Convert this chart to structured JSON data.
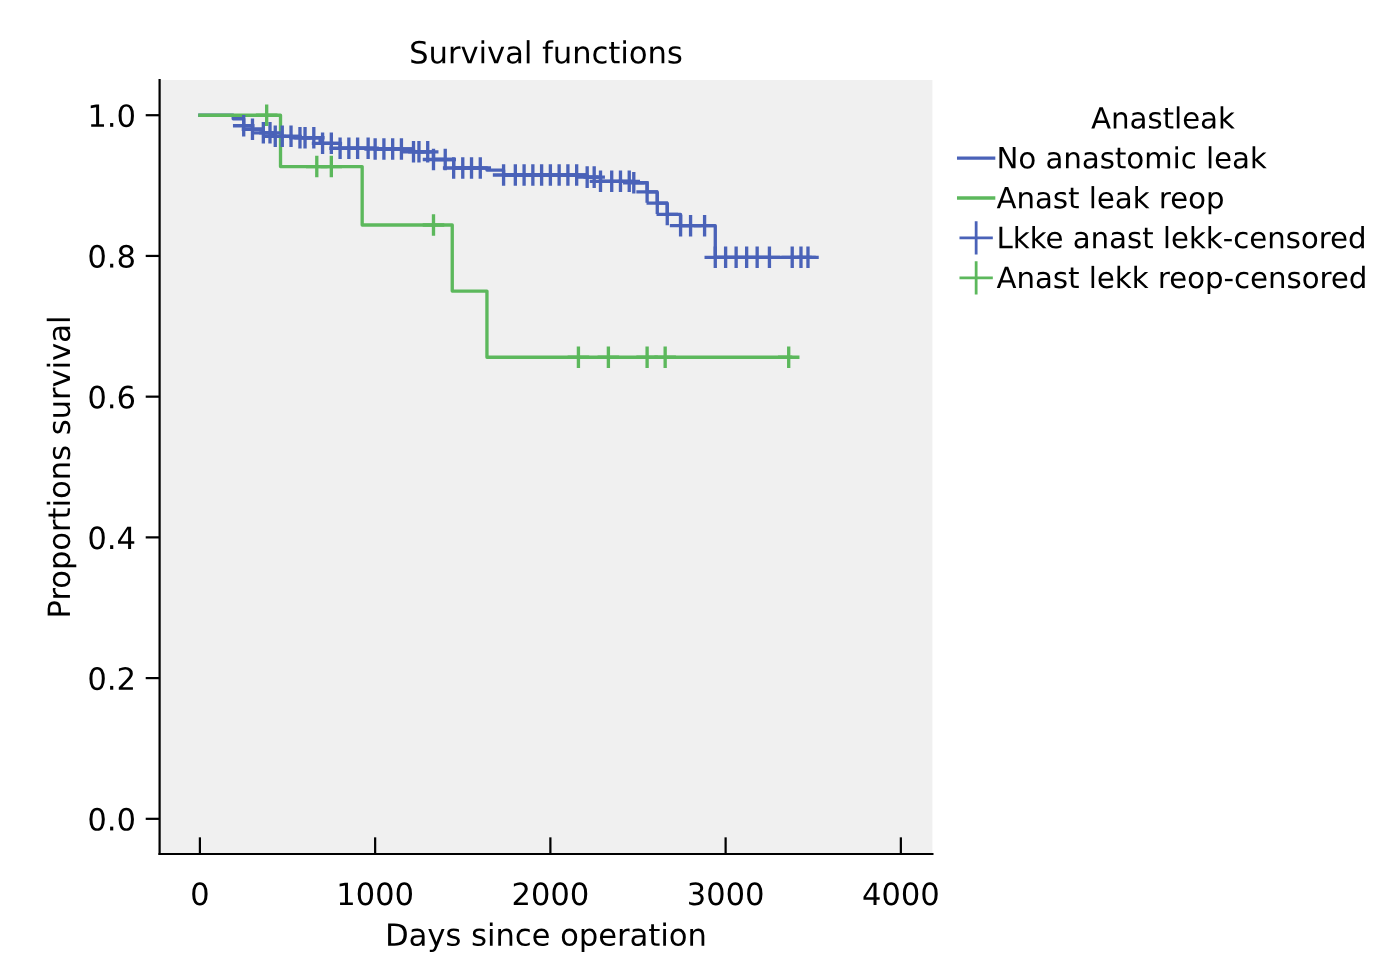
{
  "chart_data": {
    "type": "step",
    "title": "Survival functions",
    "xlabel": "Days since operation",
    "ylabel": "Proportions survival",
    "legend_title": "Anastleak",
    "legend": "top right",
    "grid": false,
    "xlim": [
      -230,
      4180
    ],
    "xticks": [
      0,
      1000,
      2000,
      3000,
      4000
    ],
    "ylim": [
      -0.05,
      1.05
    ],
    "yticks": [
      {
        "value": 0,
        "label": "0.0"
      },
      0.2,
      0.4,
      0.6,
      0.8,
      {
        "value": 1,
        "label": "1.0"
      }
    ],
    "series": [
      {
        "name": "No anastomic leak",
        "color": "#4a62b8",
        "marker": "none",
        "x": [
          0,
          190,
          250,
          300,
          362,
          419,
          571,
          686,
          800,
          1000,
          1219,
          1333,
          1448,
          1638,
          1733,
          2210,
          2286,
          2476,
          2552,
          2610,
          2667,
          2743,
          2941,
          3505
        ],
        "values": [
          1.0,
          0.995,
          0.985,
          0.98,
          0.975,
          0.97,
          0.968,
          0.96,
          0.953,
          0.952,
          0.948,
          0.937,
          0.925,
          0.922,
          0.915,
          0.912,
          0.906,
          0.904,
          0.891,
          0.875,
          0.859,
          0.843,
          0.798,
          0.798
        ]
      },
      {
        "name": "Anast leak reop",
        "color": "#5cb85c",
        "marker": "none",
        "x": [
          0,
          460,
          926,
          1440,
          1638,
          3371
        ],
        "values": [
          1.0,
          0.927,
          0.844,
          0.75,
          0.656,
          0.656
        ]
      },
      {
        "name": "Lkke anast lekk-censored",
        "type": "scatter",
        "color": "#4a62b8",
        "marker": "cross",
        "x": [
          250,
          300,
          362,
          400,
          430,
          470,
          520,
          571,
          600,
          650,
          700,
          750,
          800,
          850,
          900,
          960,
          1000,
          1050,
          1100,
          1150,
          1219,
          1250,
          1300,
          1333,
          1400,
          1448,
          1500,
          1550,
          1600,
          1733,
          1800,
          1850,
          1900,
          1950,
          2000,
          2050,
          2100,
          2150,
          2210,
          2250,
          2286,
          2350,
          2400,
          2450,
          2476,
          2552,
          2610,
          2667,
          2743,
          2800,
          2880,
          2941,
          3000,
          3060,
          3120,
          3180,
          3250,
          3380,
          3430,
          3470
        ],
        "values": [
          0.985,
          0.98,
          0.975,
          0.975,
          0.97,
          0.97,
          0.97,
          0.968,
          0.968,
          0.968,
          0.96,
          0.96,
          0.953,
          0.953,
          0.953,
          0.953,
          0.952,
          0.952,
          0.952,
          0.952,
          0.948,
          0.948,
          0.948,
          0.937,
          0.937,
          0.925,
          0.925,
          0.925,
          0.925,
          0.915,
          0.915,
          0.915,
          0.915,
          0.915,
          0.915,
          0.915,
          0.915,
          0.915,
          0.912,
          0.912,
          0.906,
          0.906,
          0.906,
          0.906,
          0.904,
          0.891,
          0.875,
          0.859,
          0.843,
          0.843,
          0.843,
          0.798,
          0.798,
          0.798,
          0.798,
          0.798,
          0.798,
          0.798,
          0.798,
          0.798
        ]
      },
      {
        "name": "Anast lekk reop-censored",
        "type": "scatter",
        "color": "#5cb85c",
        "marker": "cross",
        "x": [
          381,
          667,
          750,
          1333,
          2160,
          2331,
          2552,
          2655,
          3360
        ],
        "values": [
          1.0,
          0.927,
          0.927,
          0.844,
          0.656,
          0.656,
          0.656,
          0.656,
          0.656
        ]
      }
    ]
  }
}
